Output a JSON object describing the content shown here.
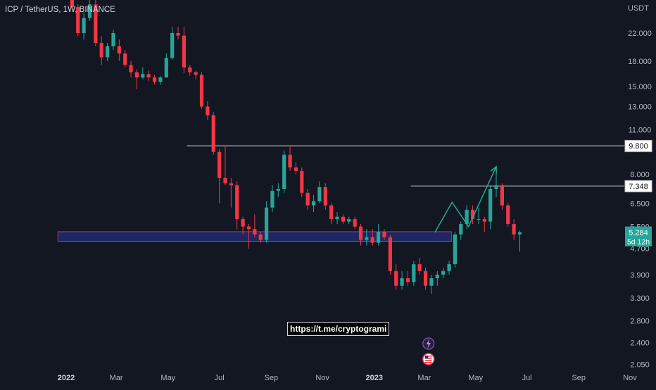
{
  "header": {
    "symbol_title": "ICP / TetherUS, 1W, BINANCE"
  },
  "price_axis": {
    "unit_label": "USDT",
    "scale": "log",
    "ylim": [
      1.95,
      27.0
    ],
    "ticks": [
      "22.000",
      "18.000",
      "15.000",
      "13.000",
      "11.000",
      "8.000",
      "6.500",
      "5.500",
      "4.700",
      "3.900",
      "3.300",
      "2.800",
      "2.400",
      "2.050"
    ]
  },
  "time_axis": {
    "ticks": [
      {
        "label": "2022",
        "bold": true,
        "week": 0
      },
      {
        "label": "Mar",
        "bold": false,
        "week": 8.5
      },
      {
        "label": "May",
        "bold": false,
        "week": 17.3
      },
      {
        "label": "Jul",
        "bold": false,
        "week": 26
      },
      {
        "label": "Sep",
        "bold": false,
        "week": 34.8
      },
      {
        "label": "Nov",
        "bold": false,
        "week": 43.5
      },
      {
        "label": "2023",
        "bold": true,
        "week": 52.3
      },
      {
        "label": "Mar",
        "bold": false,
        "week": 60.8
      },
      {
        "label": "May",
        "bold": false,
        "week": 69.5
      },
      {
        "label": "Jul",
        "bold": false,
        "week": 78.2
      },
      {
        "label": "Sep",
        "bold": false,
        "week": 87
      },
      {
        "label": "Nov",
        "bold": false,
        "week": 95.7
      }
    ]
  },
  "price_labels": {
    "level_high": {
      "text": "9.800",
      "value": 9.8
    },
    "level_mid": {
      "text": "7.348",
      "value": 7.348
    },
    "current_price": "5.284",
    "countdown": "5d 12h",
    "current_value": 5.284
  },
  "annotations": {
    "link_text": "https://t.me/cryptogrami",
    "support_zone": {
      "low": 4.95,
      "high": 5.3,
      "week_start": -1.4,
      "week_end": 65.4
    },
    "projection_path": [
      [
        62.6,
        5.28
      ],
      [
        65.5,
        6.55
      ],
      [
        68.3,
        5.5
      ],
      [
        73.0,
        8.45
      ]
    ]
  },
  "colors": {
    "background": "#131722",
    "bullish": "#26a69a",
    "bearish": "#f23645",
    "zone_fill": "#1e2a6e",
    "zone_border": "#b8344e",
    "level_line": "#c8cad0",
    "projection": "#22ab94",
    "current_price_bg": "#26a69a"
  },
  "icons": [
    "lightning-icon",
    "flag-icon"
  ],
  "chart_data": {
    "type": "candlestick",
    "timeframe": "1W",
    "start_date": "2021-12-20",
    "candles": [
      [
        30.5,
        31.5,
        28.5,
        29.5
      ],
      [
        29.5,
        30.5,
        26.0,
        26.5
      ],
      [
        26.5,
        27.0,
        21.5,
        22.0
      ],
      [
        22.0,
        25.5,
        21.0,
        24.5
      ],
      [
        24.5,
        28.0,
        24.0,
        27.0
      ],
      [
        27.0,
        28.0,
        20.0,
        20.5
      ],
      [
        20.5,
        21.5,
        17.5,
        18.5
      ],
      [
        18.5,
        20.5,
        18.0,
        20.0
      ],
      [
        20.0,
        22.5,
        19.5,
        22.0
      ],
      [
        20.0,
        21.0,
        18.0,
        19.0
      ],
      [
        19.0,
        19.5,
        17.2,
        17.5
      ],
      [
        17.5,
        18.0,
        16.0,
        16.6
      ],
      [
        16.6,
        17.0,
        14.7,
        16.0
      ],
      [
        16.0,
        17.2,
        15.8,
        16.4
      ],
      [
        16.4,
        16.8,
        15.6,
        16.0
      ],
      [
        16.0,
        16.3,
        15.2,
        15.5
      ],
      [
        15.5,
        16.2,
        15.2,
        16.0
      ],
      [
        16.0,
        19.0,
        16.0,
        18.4
      ],
      [
        18.4,
        23.0,
        18.2,
        22.0
      ],
      [
        22.0,
        23.0,
        21.0,
        21.6
      ],
      [
        21.6,
        23.0,
        16.5,
        17.2
      ],
      [
        17.2,
        17.5,
        16.2,
        16.6
      ],
      [
        16.6,
        16.8,
        15.8,
        16.3
      ],
      [
        16.3,
        16.6,
        12.8,
        13.0
      ],
      [
        13.0,
        13.5,
        11.8,
        12.2
      ],
      [
        12.2,
        12.5,
        9.2,
        9.4
      ],
      [
        9.4,
        9.6,
        6.5,
        7.8
      ],
      [
        7.8,
        9.8,
        7.4,
        7.5
      ],
      [
        7.5,
        7.8,
        6.3,
        7.4
      ],
      [
        7.4,
        7.6,
        5.4,
        5.8
      ],
      [
        5.8,
        5.9,
        5.2,
        5.5
      ],
      [
        5.5,
        5.6,
        4.7,
        5.4
      ],
      [
        5.4,
        6.0,
        5.1,
        5.2
      ],
      [
        5.2,
        5.3,
        4.9,
        5.0
      ],
      [
        5.0,
        6.6,
        4.9,
        6.3
      ],
      [
        6.3,
        7.4,
        6.1,
        7.1
      ],
      [
        7.1,
        7.5,
        6.8,
        7.2
      ],
      [
        7.2,
        9.5,
        7.0,
        9.2
      ],
      [
        9.2,
        9.8,
        8.2,
        8.4
      ],
      [
        8.4,
        8.7,
        8.0,
        8.2
      ],
      [
        8.2,
        8.4,
        6.8,
        7.0
      ],
      [
        7.0,
        7.2,
        6.2,
        6.4
      ],
      [
        6.4,
        6.9,
        6.1,
        6.6
      ],
      [
        6.6,
        7.6,
        6.5,
        7.3
      ],
      [
        7.3,
        7.5,
        6.2,
        6.4
      ],
      [
        6.4,
        6.5,
        5.6,
        5.8
      ],
      [
        5.8,
        6.1,
        5.6,
        5.9
      ],
      [
        5.9,
        6.0,
        5.6,
        5.7
      ],
      [
        5.7,
        5.9,
        5.6,
        5.8
      ],
      [
        5.8,
        5.9,
        5.4,
        5.5
      ],
      [
        5.5,
        5.6,
        4.8,
        5.0
      ],
      [
        5.0,
        5.4,
        4.8,
        5.1
      ],
      [
        5.1,
        5.4,
        4.8,
        4.9
      ],
      [
        4.9,
        5.6,
        4.8,
        5.3
      ],
      [
        5.3,
        5.4,
        5.0,
        5.1
      ],
      [
        5.1,
        5.2,
        3.9,
        4.0
      ],
      [
        4.0,
        4.2,
        3.5,
        3.6
      ],
      [
        3.6,
        4.0,
        3.5,
        3.8
      ],
      [
        3.8,
        4.0,
        3.6,
        3.7
      ],
      [
        3.7,
        4.3,
        3.6,
        4.2
      ],
      [
        4.2,
        4.4,
        3.9,
        4.0
      ],
      [
        4.0,
        4.1,
        3.5,
        3.6
      ],
      [
        3.6,
        3.9,
        3.4,
        3.8
      ],
      [
        3.8,
        4.0,
        3.6,
        3.9
      ],
      [
        3.9,
        4.1,
        3.8,
        4.0
      ],
      [
        4.0,
        4.3,
        3.9,
        4.2
      ],
      [
        4.2,
        5.3,
        4.1,
        5.2
      ],
      [
        5.2,
        5.7,
        5.0,
        5.6
      ],
      [
        5.6,
        6.4,
        5.4,
        6.2
      ],
      [
        6.2,
        6.4,
        5.6,
        5.8
      ],
      [
        5.8,
        6.3,
        5.6,
        5.8
      ],
      [
        5.8,
        5.9,
        5.3,
        5.7
      ],
      [
        5.7,
        7.4,
        5.4,
        7.2
      ],
      [
        7.2,
        8.4,
        6.8,
        7.4
      ],
      [
        7.4,
        7.5,
        6.2,
        6.4
      ],
      [
        6.4,
        6.5,
        5.5,
        5.6
      ],
      [
        5.6,
        5.8,
        5.0,
        5.2
      ],
      [
        5.2,
        5.35,
        4.6,
        5.284
      ]
    ]
  }
}
